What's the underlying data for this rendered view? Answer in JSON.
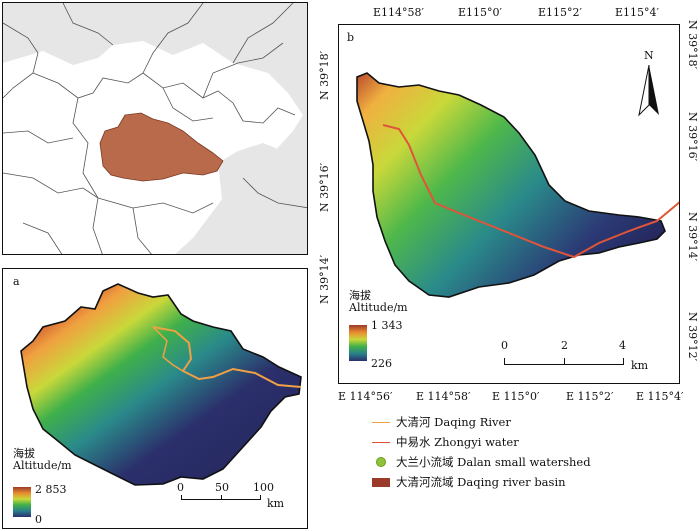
{
  "overview": {
    "label": ""
  },
  "panel_a": {
    "label": "a",
    "legend_title_cn": "海拔",
    "legend_title_en": "Altitude/m",
    "max": "2 853",
    "min": "0",
    "scale_ticks": [
      "0",
      "50",
      "100"
    ],
    "scale_unit": "km"
  },
  "panel_b": {
    "label": "b",
    "legend_title_cn": "海拔",
    "legend_title_en": "Altitude/m",
    "max": "1 343",
    "min": "226",
    "scale_ticks": [
      "0",
      "2",
      "4"
    ],
    "scale_unit": "km",
    "north": "N",
    "top_lon": [
      "E114°58′",
      "E115°0′",
      "E115°2′",
      "E115°4′"
    ],
    "bottom_lon": [
      "E 114°56′",
      "E 114°58′",
      "E 115°0′",
      "E 115°2′",
      "E 115°4′"
    ],
    "left_lat": [
      "N 39°18′",
      "N 39°16′",
      "N 39°14′"
    ],
    "right_lat": [
      "N 39°18′",
      "N 39°16′",
      "N 39°14′",
      "N 39°12′"
    ]
  },
  "legend": [
    {
      "text": "大清河 Daqing River",
      "color": "#f0a044",
      "kind": "line"
    },
    {
      "text": "中易水 Zhongyi water",
      "color": "#e0553a",
      "kind": "line"
    },
    {
      "text": "大兰小流域 Dalan small watershed",
      "color": "#8fc43a",
      "kind": "dot"
    },
    {
      "text": "大清河流域 Daqing river basin",
      "color": "#9b3a2a",
      "kind": "box"
    }
  ]
}
